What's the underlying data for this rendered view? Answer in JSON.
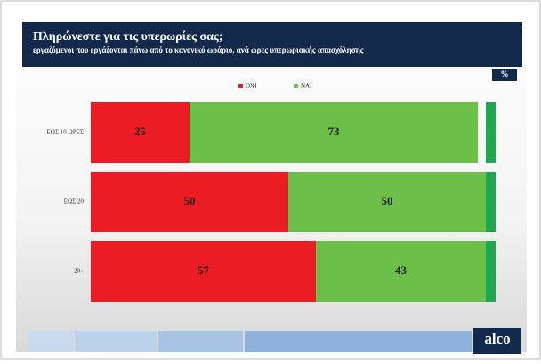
{
  "chart_data": {
    "type": "stacked-bar-horizontal",
    "title": "Πληρώνεστε για τις υπερωρίες σας;",
    "subtitle": "εργαζόμενοι που εργάζονται πάνω από το κανονικό ωράριο, ανά ώρες υπερωριακής απασχόλησης",
    "unit_badge": "%",
    "logo": "alco",
    "categories": [
      "ΕΩΣ 10 ΩΡΕΣ",
      "ΕΩΣ 20",
      "20+"
    ],
    "series": [
      {
        "name": "ΟΧΙ",
        "color": "#ec1c24",
        "values": [
          25,
          50,
          57
        ]
      },
      {
        "name": "ΝΑΙ",
        "color": "#6cc04a",
        "values": [
          73,
          50,
          43
        ]
      }
    ],
    "xlim": [
      0,
      100
    ]
  }
}
